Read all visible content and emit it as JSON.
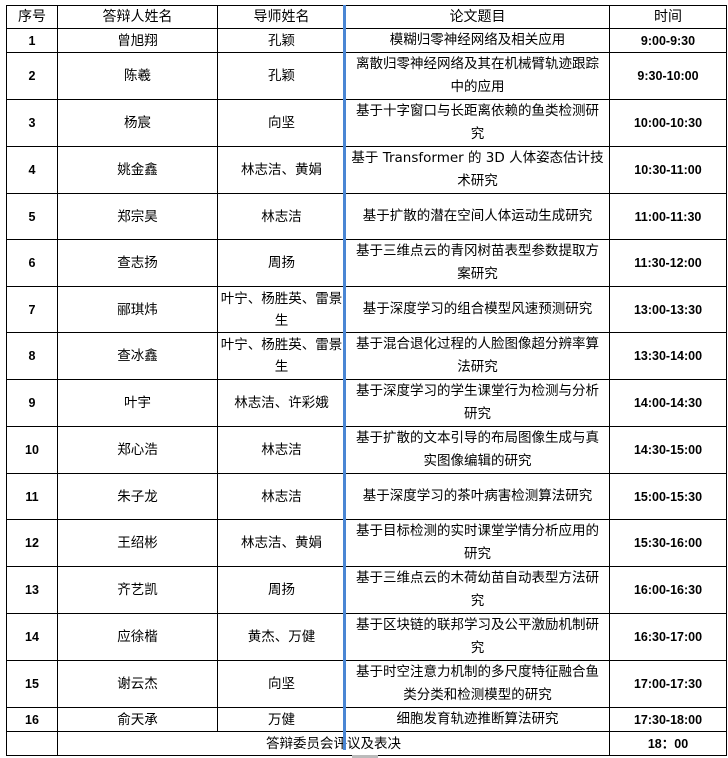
{
  "headers": [
    "序号",
    "答辩人姓名",
    "导师姓名",
    "论文题目",
    "时间"
  ],
  "rows": [
    {
      "no": "1",
      "student": "曾旭翔",
      "advisor": "孔颖",
      "title": "模糊归零神经网络及相关应用",
      "time": "9:00-9:30"
    },
    {
      "no": "2",
      "student": "陈羲",
      "advisor": "孔颖",
      "title": "离散归零神经网络及其在机械臂轨迹跟踪中的应用",
      "time": "9:30-10:00"
    },
    {
      "no": "3",
      "student": "杨宸",
      "advisor": "向坚",
      "title": "基于十字窗口与长距离依赖的鱼类检测研究",
      "time": "10:00-10:30"
    },
    {
      "no": "4",
      "student": "姚金鑫",
      "advisor": "林志洁、黄娟",
      "title": "基于 Transformer 的 3D 人体姿态估计技术研究",
      "time": "10:30-11:00"
    },
    {
      "no": "5",
      "student": "郑宗昊",
      "advisor": "林志洁",
      "title": "基于扩散的潜在空间人体运动生成研究",
      "time": "11:00-11:30"
    },
    {
      "no": "6",
      "student": "查志扬",
      "advisor": "周扬",
      "title": "基于三维点云的青冈树苗表型参数提取方案研究",
      "time": "11:30-12:00"
    },
    {
      "no": "7",
      "student": "郦琪炜",
      "advisor": "叶宁、杨胜英、雷景生",
      "title": "基于深度学习的组合模型风速预测研究",
      "time": "13:00-13:30"
    },
    {
      "no": "8",
      "student": "查冰鑫",
      "advisor": "叶宁、杨胜英、雷景生",
      "title": "基于混合退化过程的人脸图像超分辨率算法研究",
      "time": "13:30-14:00"
    },
    {
      "no": "9",
      "student": "叶宇",
      "advisor": "林志洁、许彩娥",
      "title": "基于深度学习的学生课堂行为检测与分析研究",
      "time": "14:00-14:30"
    },
    {
      "no": "10",
      "student": "郑心浩",
      "advisor": "林志洁",
      "title": "基于扩散的文本引导的布局图像生成与真实图像编辑的研究",
      "time": "14:30-15:00"
    },
    {
      "no": "11",
      "student": "朱子龙",
      "advisor": "林志洁",
      "title": "基于深度学习的茶叶病害检测算法研究",
      "time": "15:00-15:30"
    },
    {
      "no": "12",
      "student": "王绍彬",
      "advisor": "林志洁、黄娟",
      "title": "基于目标检测的实时课堂学情分析应用的研究",
      "time": "15:30-16:00"
    },
    {
      "no": "13",
      "student": "齐艺凯",
      "advisor": "周扬",
      "title": "基于三维点云的木荷幼苗自动表型方法研究",
      "time": "16:00-16:30"
    },
    {
      "no": "14",
      "student": "应徐楷",
      "advisor": "黄杰、万健",
      "title": "基于区块链的联邦学习及公平激励机制研究",
      "time": "16:30-17:00"
    },
    {
      "no": "15",
      "student": "谢云杰",
      "advisor": "向坚",
      "title": "基于时空注意力机制的多尺度特征融合鱼类分类和检测模型的研究",
      "time": "17:00-17:30"
    },
    {
      "no": "16",
      "student": "俞天承",
      "advisor": "万健",
      "title": "细胞发育轨迹推断算法研究",
      "time": "17:30-18:00"
    }
  ],
  "footer": {
    "label": "答辩委员会评议及表决",
    "time": "18：00"
  },
  "colors": {
    "accent_line": "#4a86d4"
  }
}
